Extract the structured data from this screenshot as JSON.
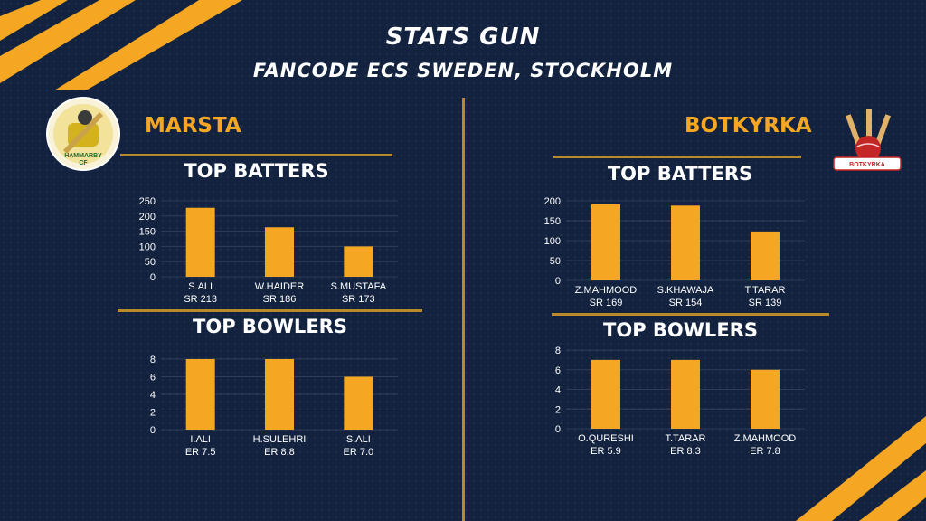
{
  "header": {
    "title": "STATS GUN",
    "subtitle": "FANCODE ECS SWEDEN, STOCKHOLM"
  },
  "teams": {
    "left": {
      "name": "MARSTA",
      "logo_icon": "hammarby-cf-logo",
      "logo_text": "HAMMARBY CF"
    },
    "right": {
      "name": "BOTKYRKA",
      "logo_icon": "cricket-ball-stumps-logo",
      "logo_text": "BOTKYRKA"
    }
  },
  "colors": {
    "accent": "#f5a623",
    "background": "#13233f",
    "divider": "#b88a2a"
  },
  "chart_data": [
    {
      "id": "marsta-batters",
      "type": "bar",
      "title": "TOP BATTERS",
      "categories": [
        "S.ALI",
        "W.HAIDER",
        "S.MUSTAFA"
      ],
      "sublabels": [
        "SR 213",
        "SR 186",
        "SR 173"
      ],
      "values": [
        227,
        163,
        100
      ],
      "ylim": [
        0,
        250
      ],
      "yticks": [
        0,
        50,
        100,
        150,
        200,
        250
      ],
      "grid": true
    },
    {
      "id": "marsta-bowlers",
      "type": "bar",
      "title": "TOP BOWLERS",
      "categories": [
        "I.ALI",
        "H.SULEHRI",
        "S.ALI"
      ],
      "sublabels": [
        "ER 7.5",
        "ER 8.8",
        "ER 7.0"
      ],
      "values": [
        8,
        8,
        6
      ],
      "ylim": [
        0,
        8
      ],
      "yticks": [
        0,
        2,
        4,
        6,
        8
      ],
      "grid": true
    },
    {
      "id": "botkyrka-batters",
      "type": "bar",
      "title": "TOP BATTERS",
      "categories": [
        "Z.MAHMOOD",
        "S.KHAWAJA",
        "T.TARAR"
      ],
      "sublabels": [
        "SR 169",
        "SR 154",
        "SR 139"
      ],
      "values": [
        192,
        188,
        123
      ],
      "ylim": [
        0,
        200
      ],
      "yticks": [
        0,
        50,
        100,
        150,
        200
      ],
      "grid": true
    },
    {
      "id": "botkyrka-bowlers",
      "type": "bar",
      "title": "TOP BOWLERS",
      "categories": [
        "O.QURESHI",
        "T.TARAR",
        "Z.MAHMOOD"
      ],
      "sublabels": [
        "ER 5.9",
        "ER 8.3",
        "ER 7.8"
      ],
      "values": [
        7,
        7,
        6
      ],
      "ylim": [
        0,
        8
      ],
      "yticks": [
        0,
        2,
        4,
        6,
        8
      ],
      "grid": true
    }
  ]
}
